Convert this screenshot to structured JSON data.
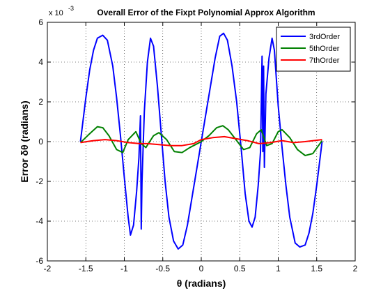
{
  "chart_data": {
    "type": "line",
    "title": "Overall Error of the Fixpt Polynomial Approx Algorithm",
    "y_multiplier": "x 10",
    "y_multiplier_exponent": "-3",
    "xlabel": "θ (radians)",
    "ylabel": "Error   δθ (radians)",
    "xlim": [
      -2,
      2
    ],
    "ylim": [
      -6,
      6
    ],
    "xticks": [
      -2,
      -1.5,
      -1,
      -0.5,
      0,
      0.5,
      1,
      1.5,
      2
    ],
    "yticks": [
      -6,
      -4,
      -2,
      0,
      2,
      4,
      6
    ],
    "grid": true,
    "legend": "upper right",
    "series": [
      {
        "name": "3rdOrder",
        "color": "#0000ff",
        "x": [
          -1.57,
          -1.5,
          -1.45,
          -1.4,
          -1.35,
          -1.28,
          -1.22,
          -1.15,
          -1.1,
          -1.05,
          -1.0,
          -0.95,
          -0.92,
          -0.88,
          -0.84,
          -0.81,
          -0.79,
          -0.78,
          -0.77,
          -0.74,
          -0.7,
          -0.66,
          -0.62,
          -0.57,
          -0.52,
          -0.47,
          -0.42,
          -0.36,
          -0.3,
          -0.24,
          -0.18,
          -0.12,
          -0.06,
          0,
          0.06,
          0.12,
          0.18,
          0.24,
          0.29,
          0.34,
          0.4,
          0.46,
          0.52,
          0.57,
          0.62,
          0.66,
          0.7,
          0.74,
          0.77,
          0.79,
          0.8,
          0.81,
          0.82,
          0.84,
          0.88,
          0.92,
          0.95,
          1.0,
          1.05,
          1.1,
          1.15,
          1.22,
          1.28,
          1.35,
          1.4,
          1.45,
          1.5,
          1.57
        ],
        "values": [
          0,
          2.2,
          3.6,
          4.6,
          5.2,
          5.35,
          5.1,
          3.8,
          2.2,
          0.3,
          -1.8,
          -3.8,
          -4.7,
          -4.2,
          -2.5,
          -0.8,
          1.3,
          -4.4,
          -2.0,
          1.5,
          4.0,
          5.2,
          4.8,
          2.8,
          0.4,
          -2.0,
          -3.8,
          -5.0,
          -5.4,
          -5.2,
          -4.2,
          -2.8,
          -1.4,
          0,
          1.4,
          2.8,
          4.2,
          5.3,
          5.45,
          5.1,
          3.8,
          2.0,
          -0.4,
          -2.6,
          -4.0,
          -4.3,
          -3.8,
          -2.2,
          -0.5,
          4.3,
          -0.5,
          3.8,
          -1.3,
          2.4,
          4.2,
          5.2,
          4.6,
          1.8,
          -0.3,
          -2.2,
          -3.8,
          -5.1,
          -5.3,
          -5.2,
          -4.6,
          -3.6,
          -2.2,
          0
        ]
      },
      {
        "name": "5thOrder",
        "color": "#008000",
        "x": [
          -1.57,
          -1.45,
          -1.35,
          -1.28,
          -1.2,
          -1.1,
          -1.02,
          -0.95,
          -0.85,
          -0.78,
          -0.72,
          -0.62,
          -0.55,
          -0.45,
          -0.35,
          -0.25,
          -0.15,
          0,
          0.1,
          0.2,
          0.28,
          0.35,
          0.45,
          0.55,
          0.63,
          0.72,
          0.78,
          0.85,
          0.92,
          1.0,
          1.05,
          1.15,
          1.25,
          1.35,
          1.45,
          1.57
        ],
        "values": [
          -0.05,
          0.4,
          0.75,
          0.7,
          0.3,
          -0.4,
          -0.55,
          0.1,
          0.5,
          -0.1,
          -0.3,
          0.3,
          0.45,
          0.1,
          -0.5,
          -0.55,
          -0.3,
          0,
          0.3,
          0.7,
          0.8,
          0.6,
          0.1,
          -0.4,
          -0.3,
          0.4,
          0.6,
          -0.2,
          -0.1,
          0.5,
          0.6,
          0.2,
          -0.4,
          -0.7,
          -0.6,
          0.05
        ]
      },
      {
        "name": "7thOrder",
        "color": "#ff0000",
        "x": [
          -1.57,
          -1.4,
          -1.25,
          -1.1,
          -0.95,
          -0.8,
          -0.7,
          -0.55,
          -0.4,
          -0.25,
          -0.1,
          0,
          0.15,
          0.3,
          0.45,
          0.6,
          0.75,
          0.9,
          1.05,
          1.2,
          1.35,
          1.57
        ],
        "values": [
          -0.05,
          0.05,
          0.1,
          0.05,
          -0.05,
          -0.1,
          -0.1,
          -0.15,
          -0.2,
          -0.2,
          -0.1,
          0.1,
          0.2,
          0.25,
          0.15,
          0.05,
          -0.1,
          -0.05,
          0.05,
          -0.05,
          0,
          0.1
        ]
      }
    ]
  }
}
